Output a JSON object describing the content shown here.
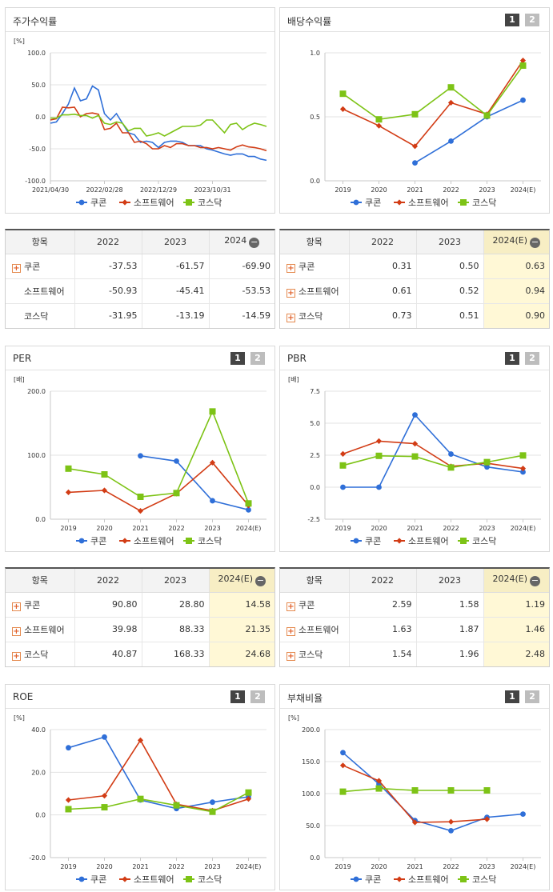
{
  "colors": {
    "coupang": "#2f6fd8",
    "software": "#d23c15",
    "kosdaq": "#7dc316"
  },
  "legend": [
    "쿠콘",
    "소프트웨어",
    "코스닥"
  ],
  "panels": {
    "stock": {
      "title": "주가수익률"
    },
    "dividend": {
      "title": "배당수익률",
      "btn1": "1",
      "btn2": "2"
    },
    "per": {
      "title": "PER",
      "btn1": "1",
      "btn2": "2"
    },
    "pbr": {
      "title": "PBR",
      "btn1": "1",
      "btn2": "2"
    },
    "roe": {
      "title": "ROE",
      "btn1": "1",
      "btn2": "2"
    },
    "debt": {
      "title": "부채비율",
      "btn1": "1",
      "btn2": "2"
    }
  },
  "tables": {
    "stock": {
      "headers": [
        "항목",
        "2022",
        "2023",
        "2024"
      ],
      "minus": "−",
      "rows": [
        {
          "name": "쿠콘",
          "plus": true,
          "values": [
            "-37.53",
            "-61.57",
            "-69.90"
          ]
        },
        {
          "name": "소프트웨어",
          "plus": false,
          "values": [
            "-50.93",
            "-45.41",
            "-53.53"
          ]
        },
        {
          "name": "코스닥",
          "plus": false,
          "values": [
            "-31.95",
            "-13.19",
            "-14.59"
          ]
        }
      ]
    },
    "dividend": {
      "headers": [
        "항목",
        "2022",
        "2023",
        "2024(E)"
      ],
      "minus": "−",
      "rows": [
        {
          "name": "쿠콘",
          "plus": true,
          "values": [
            "0.31",
            "0.50",
            "0.63"
          ]
        },
        {
          "name": "소프트웨어",
          "plus": true,
          "values": [
            "0.61",
            "0.52",
            "0.94"
          ]
        },
        {
          "name": "코스닥",
          "plus": true,
          "values": [
            "0.73",
            "0.51",
            "0.90"
          ]
        }
      ]
    },
    "per": {
      "headers": [
        "항목",
        "2022",
        "2023",
        "2024(E)"
      ],
      "minus": "−",
      "rows": [
        {
          "name": "쿠콘",
          "plus": true,
          "values": [
            "90.80",
            "28.80",
            "14.58"
          ]
        },
        {
          "name": "소프트웨어",
          "plus": true,
          "values": [
            "39.98",
            "88.33",
            "21.35"
          ]
        },
        {
          "name": "코스닥",
          "plus": true,
          "values": [
            "40.87",
            "168.33",
            "24.68"
          ]
        }
      ]
    },
    "pbr": {
      "headers": [
        "항목",
        "2022",
        "2023",
        "2024(E)"
      ],
      "minus": "−",
      "rows": [
        {
          "name": "쿠콘",
          "plus": true,
          "values": [
            "2.59",
            "1.58",
            "1.19"
          ]
        },
        {
          "name": "소프트웨어",
          "plus": true,
          "values": [
            "1.63",
            "1.87",
            "1.46"
          ]
        },
        {
          "name": "코스닥",
          "plus": true,
          "values": [
            "1.54",
            "1.96",
            "2.48"
          ]
        }
      ]
    }
  },
  "chart_data": [
    {
      "id": "stock",
      "type": "line",
      "ylabel": "[%]",
      "ylim": [
        -100,
        100
      ],
      "yticks": [
        "100.0",
        "50.0",
        "0.0",
        "-50.0",
        "-100.0"
      ],
      "xticks": [
        "2021/04/30",
        "2022/02/28",
        "2022/12/29",
        "2023/10/31"
      ],
      "series": [
        {
          "name": "쿠콘",
          "values": [
            -10,
            -8,
            5,
            20,
            45,
            25,
            28,
            48,
            42,
            5,
            -5,
            5,
            -10,
            -25,
            -28,
            -40,
            -38,
            -40,
            -48,
            -40,
            -38,
            -38,
            -40,
            -45,
            -45,
            -45,
            -50,
            -52,
            -55,
            -58,
            -60,
            -58,
            -58,
            -62,
            -62,
            -66,
            -68
          ]
        },
        {
          "name": "소프트웨어",
          "values": [
            -5,
            -3,
            15,
            14,
            15,
            0,
            5,
            6,
            4,
            -20,
            -18,
            -10,
            -25,
            -25,
            -40,
            -38,
            -42,
            -50,
            -50,
            -45,
            -48,
            -42,
            -42,
            -45,
            -45,
            -48,
            -48,
            -50,
            -48,
            -50,
            -52,
            -47,
            -44,
            -47,
            -48,
            -50,
            -53
          ]
        },
        {
          "name": "코스닥",
          "values": [
            -2,
            -2,
            3,
            3,
            4,
            2,
            2,
            -2,
            2,
            -10,
            -12,
            -8,
            -10,
            -22,
            -18,
            -18,
            -30,
            -28,
            -25,
            -30,
            -25,
            -20,
            -15,
            -15,
            -15,
            -13,
            -5,
            -5,
            -15,
            -25,
            -12,
            -10,
            -20,
            -14,
            -10,
            -12,
            -15
          ]
        }
      ]
    },
    {
      "id": "dividend",
      "type": "line",
      "ylabel": "",
      "ylim": [
        0,
        1
      ],
      "yticks": [
        "1.0",
        "0.5",
        "0.0"
      ],
      "categories": [
        "2019",
        "2020",
        "2021",
        "2022",
        "2023",
        "2024(E)"
      ],
      "series": [
        {
          "name": "쿠콘",
          "values": [
            null,
            null,
            0.14,
            0.31,
            0.5,
            0.63
          ]
        },
        {
          "name": "소프트웨어",
          "values": [
            0.56,
            0.43,
            0.27,
            0.61,
            0.52,
            0.94
          ]
        },
        {
          "name": "코스닥",
          "values": [
            0.68,
            0.48,
            0.52,
            0.73,
            0.51,
            0.9
          ]
        }
      ]
    },
    {
      "id": "per",
      "type": "line",
      "ylabel": "[배]",
      "ylim": [
        0,
        200
      ],
      "yticks": [
        "200.0",
        "100.0",
        "0.0"
      ],
      "categories": [
        "2019",
        "2020",
        "2021",
        "2022",
        "2023",
        "2024(E)"
      ],
      "series": [
        {
          "name": "쿠콘",
          "values": [
            null,
            null,
            99,
            90.8,
            28.8,
            14.58
          ]
        },
        {
          "name": "소프트웨어",
          "values": [
            42,
            45,
            13,
            39.98,
            88.33,
            21.35
          ]
        },
        {
          "name": "코스닥",
          "values": [
            79,
            70,
            35,
            40.87,
            168.33,
            24.68
          ]
        }
      ]
    },
    {
      "id": "pbr",
      "type": "line",
      "ylabel": "[배]",
      "ylim": [
        -2.5,
        7.5
      ],
      "yticks": [
        "7.5",
        "5.0",
        "2.5",
        "0.0",
        "-2.5"
      ],
      "categories": [
        "2019",
        "2020",
        "2021",
        "2022",
        "2023",
        "2024(E)"
      ],
      "series": [
        {
          "name": "쿠콘",
          "values": [
            0,
            0,
            5.65,
            2.59,
            1.58,
            1.19
          ]
        },
        {
          "name": "소프트웨어",
          "values": [
            2.6,
            3.6,
            3.4,
            1.63,
            1.87,
            1.46
          ]
        },
        {
          "name": "코스닥",
          "values": [
            1.7,
            2.45,
            2.4,
            1.54,
            1.96,
            2.48
          ]
        }
      ]
    },
    {
      "id": "roe",
      "type": "line",
      "ylabel": "[%]",
      "ylim": [
        -20,
        40
      ],
      "yticks": [
        "40.0",
        "20.0",
        "0.0",
        "-20.0"
      ],
      "categories": [
        "2019",
        "2020",
        "2021",
        "2022",
        "2023",
        "2024(E)"
      ],
      "series": [
        {
          "name": "쿠콘",
          "values": [
            31.5,
            36.5,
            7,
            3,
            6,
            8.5
          ]
        },
        {
          "name": "소프트웨어",
          "values": [
            7,
            9,
            35,
            5,
            2,
            7.5
          ]
        },
        {
          "name": "코스닥",
          "values": [
            2.7,
            3.6,
            7.5,
            4.5,
            1.5,
            10.5
          ]
        }
      ]
    },
    {
      "id": "debt",
      "type": "line",
      "ylabel": "[%]",
      "ylim": [
        0,
        200
      ],
      "yticks": [
        "200.0",
        "150.0",
        "100.0",
        "50.0",
        "0.0"
      ],
      "categories": [
        "2019",
        "2020",
        "2021",
        "2022",
        "2023",
        "2024(E)"
      ],
      "series": [
        {
          "name": "쿠콘",
          "values": [
            164,
            115,
            58,
            42,
            63,
            68
          ]
        },
        {
          "name": "소프트웨어",
          "values": [
            144,
            120,
            55,
            56,
            60,
            null
          ]
        },
        {
          "name": "코스닥",
          "values": [
            103,
            108,
            105,
            105,
            105,
            null
          ]
        }
      ]
    }
  ]
}
